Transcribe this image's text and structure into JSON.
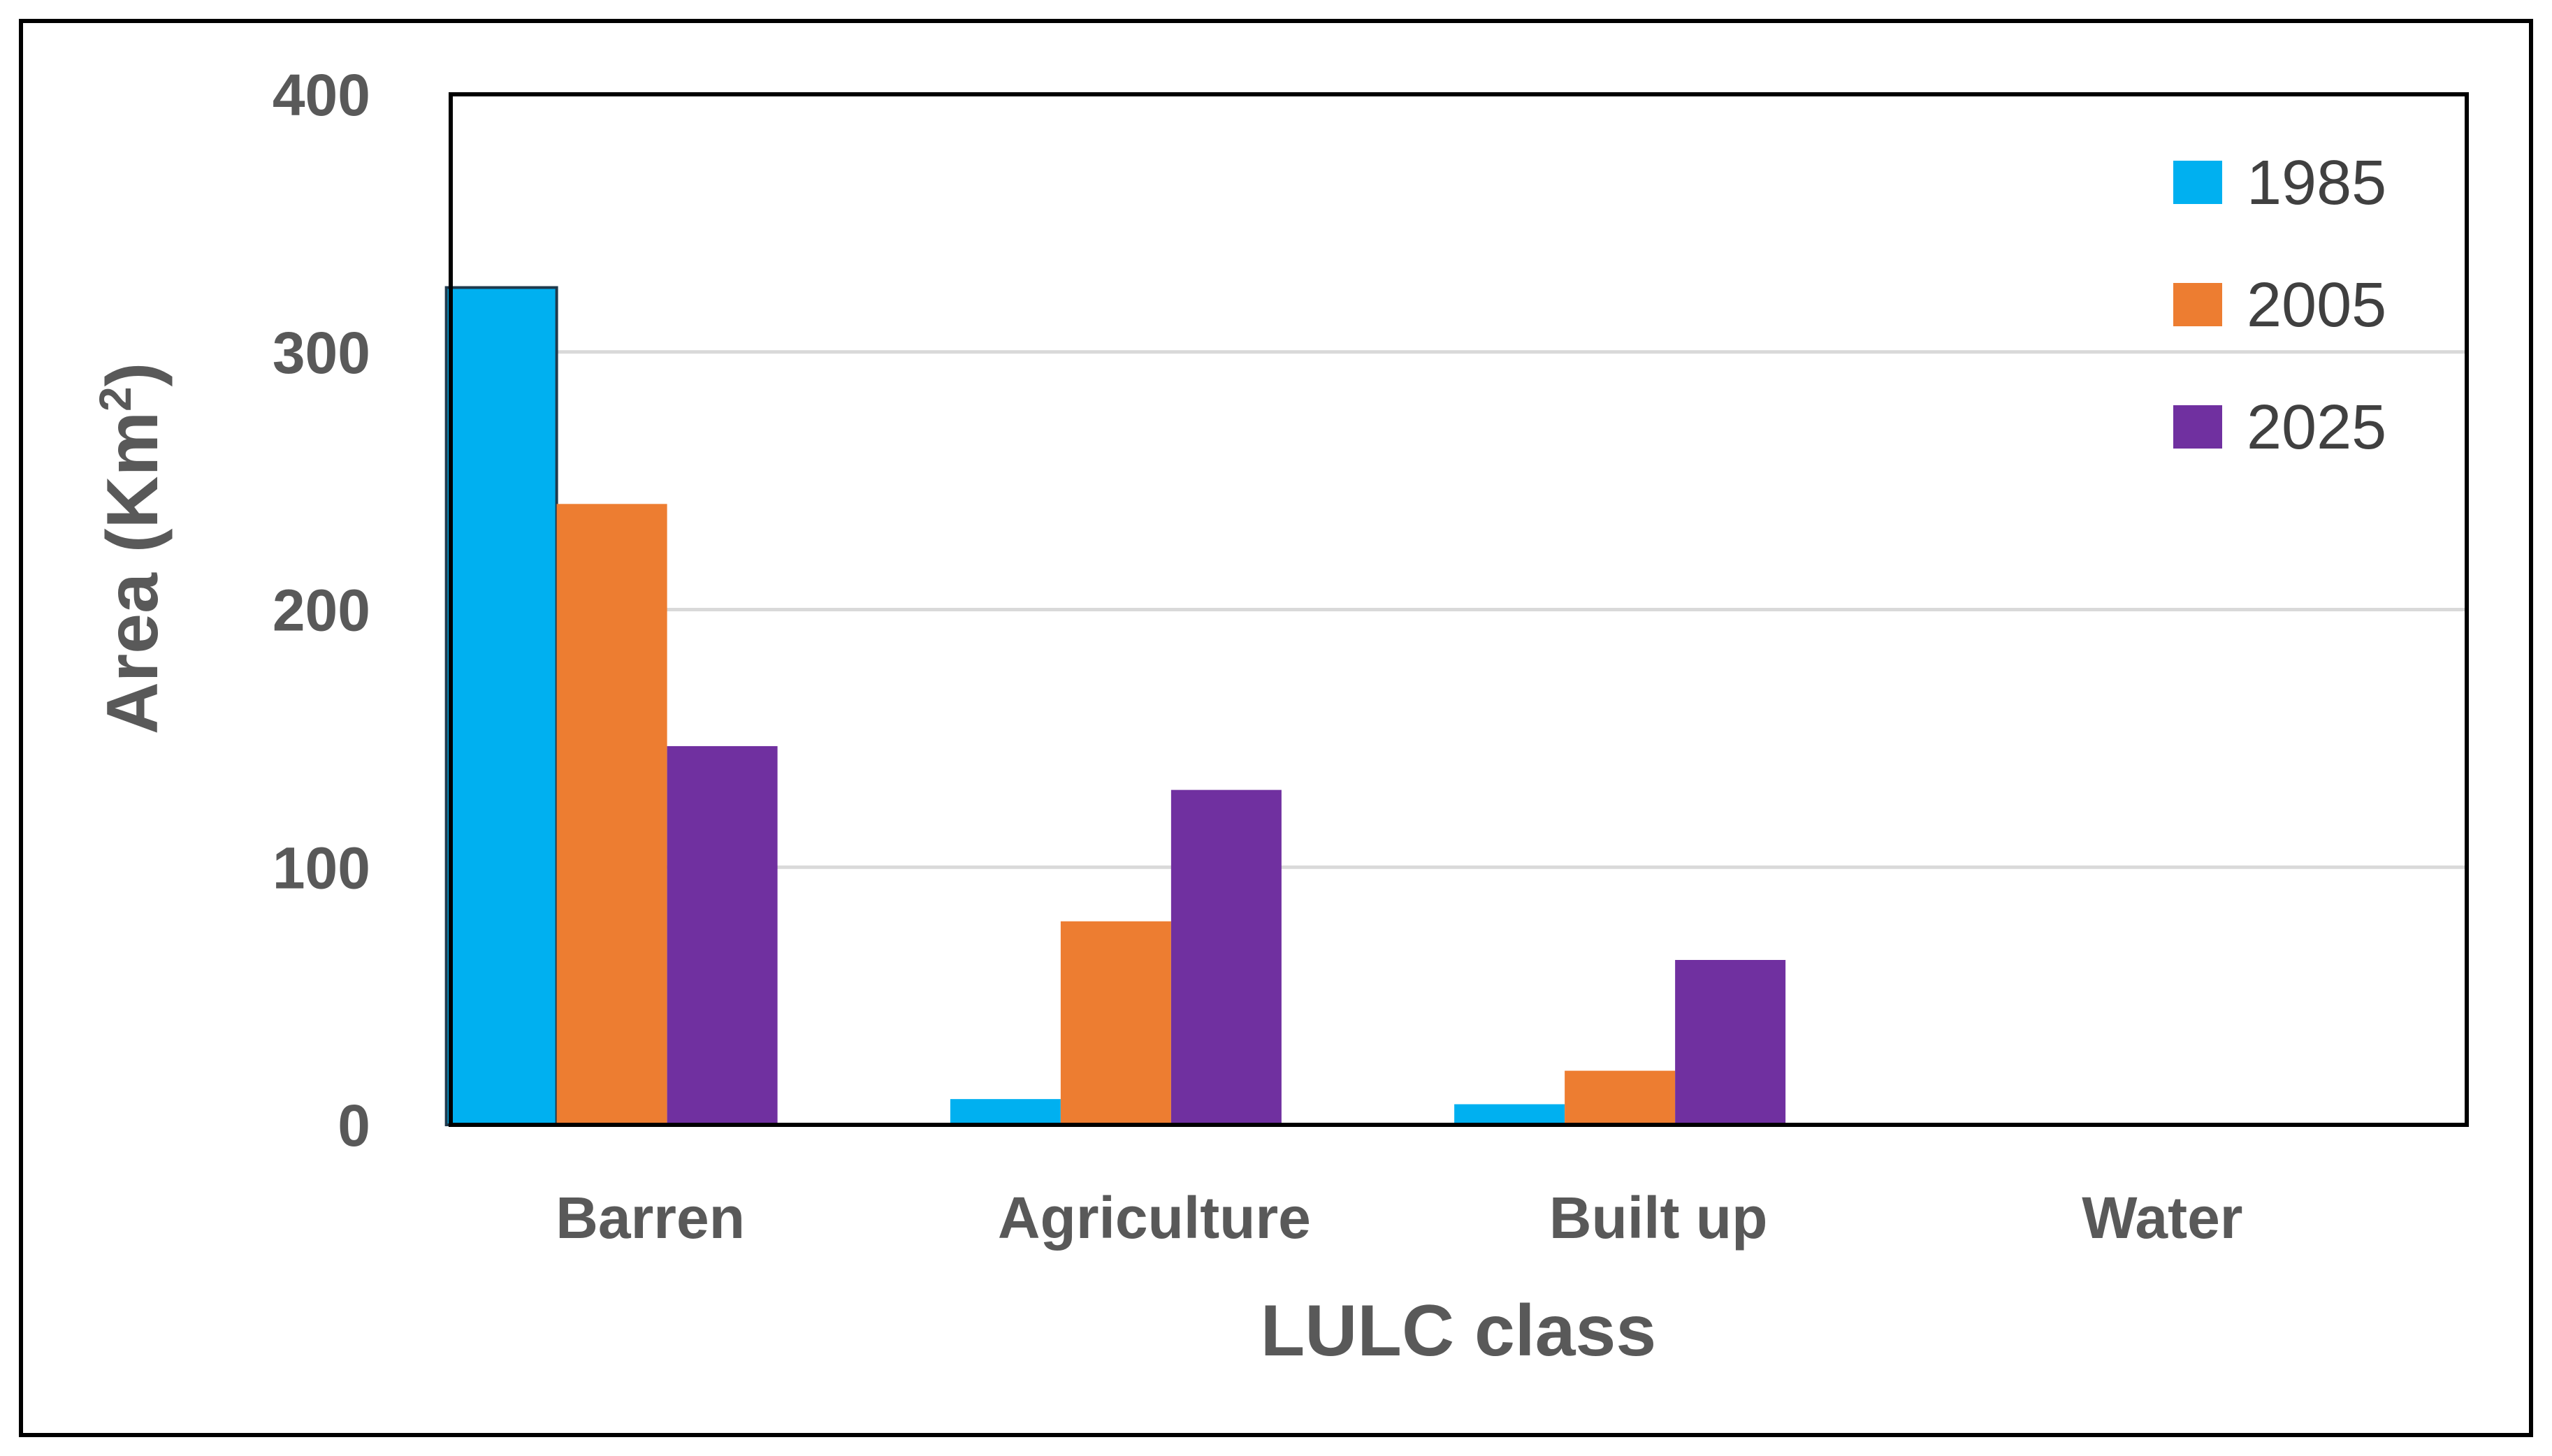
{
  "chart_data": {
    "type": "bar",
    "categories": [
      "Barren",
      "Agriculture",
      "Built up",
      "Water"
    ],
    "series": [
      {
        "name": "1985",
        "values": [
          325,
          10,
          8,
          0
        ],
        "color": "#00B0F0"
      },
      {
        "name": "2005",
        "values": [
          241,
          79,
          21,
          0
        ],
        "color": "#ED7D31"
      },
      {
        "name": "2025",
        "values": [
          147,
          130,
          64,
          0
        ],
        "color": "#7030A0"
      }
    ],
    "xlabel": "LULC class",
    "ylabel_main": "Area (Km",
    "ylabel_sup": "2",
    "ylabel_end": ")",
    "ylim": [
      0,
      400
    ],
    "yticks": [
      "0",
      "100",
      "200",
      "300",
      "400"
    ],
    "grid": true,
    "legend_position": "top-right"
  }
}
